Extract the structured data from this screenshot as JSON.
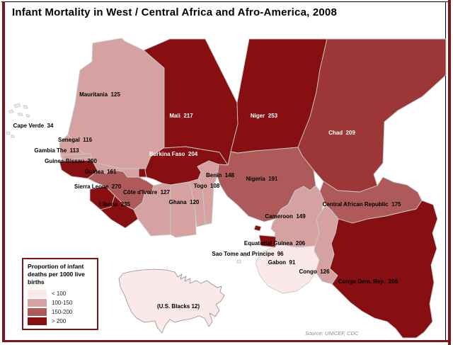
{
  "title": "Infant Mortality in West / Central Africa and Afro-America, 2008",
  "legend": {
    "title": "Proportion of infant deaths per 1000 live births",
    "classes": [
      {
        "label": "< 100",
        "color": "#fbe9e9"
      },
      {
        "label": "100-150",
        "color": "#d5a1a1"
      },
      {
        "label": "150-200",
        "color": "#ae5a5a"
      },
      {
        "label": "> 200",
        "color": "#870e11"
      }
    ]
  },
  "map": {
    "countries": [
      {
        "id": "mauritania",
        "name": "Mauritania",
        "value": 125,
        "category": 1,
        "label_color": "#000000"
      },
      {
        "id": "mali",
        "name": "Mali",
        "value": 217,
        "category": 3,
        "label_color": "#ffffff"
      },
      {
        "id": "niger",
        "name": "Niger",
        "value": 253,
        "category": 3,
        "label_color": "#ffffff"
      },
      {
        "id": "chad",
        "name": "Chad",
        "value": 209,
        "category": 3,
        "label_color": "#ffffff",
        "fill_override": "#9d3636"
      },
      {
        "id": "senegal",
        "name": "Senegal",
        "value": 116,
        "category": 1,
        "label_color": "#000000"
      },
      {
        "id": "gambia",
        "name": "Gambia The",
        "value": 113,
        "category": 1,
        "label_color": "#000000"
      },
      {
        "id": "guinea_bissau",
        "name": "Guinea-Bissau",
        "value": 200,
        "category": 3,
        "label_color": "#000000"
      },
      {
        "id": "guinea",
        "name": "Guinea",
        "value": 161,
        "category": 2,
        "label_color": "#000000"
      },
      {
        "id": "sierra_leone",
        "name": "Sierra Leone",
        "value": 270,
        "category": 3,
        "label_color": "#000000"
      },
      {
        "id": "liberia",
        "name": "Liberia",
        "value": 235,
        "category": 3,
        "label_color": "#000000"
      },
      {
        "id": "cote_divoire",
        "name": "Côte d'Ivoire",
        "value": 127,
        "category": 1,
        "label_color": "#000000"
      },
      {
        "id": "burkina_faso",
        "name": "Burkina Faso",
        "value": 204,
        "category": 3,
        "label_color": "#ffffff"
      },
      {
        "id": "ghana",
        "name": "Ghana",
        "value": 120,
        "category": 1,
        "label_color": "#000000"
      },
      {
        "id": "togo",
        "name": "Togo",
        "value": 108,
        "category": 1,
        "label_color": "#000000"
      },
      {
        "id": "benin",
        "name": "Benin",
        "value": 148,
        "category": 1,
        "label_color": "#000000"
      },
      {
        "id": "nigeria",
        "name": "Nigeria",
        "value": 191,
        "category": 2,
        "label_color": "#000000"
      },
      {
        "id": "cameroon",
        "name": "Cameroon",
        "value": 149,
        "category": 1,
        "label_color": "#000000"
      },
      {
        "id": "central_african_republic",
        "name": "Central African Republic",
        "value": 175,
        "category": 2,
        "label_color": "#000000"
      },
      {
        "id": "congo",
        "name": "Congo",
        "value": 126,
        "category": 1,
        "label_color": "#000000"
      },
      {
        "id": "gabon",
        "name": "Gabon",
        "value": 91,
        "category": 0,
        "label_color": "#000000"
      },
      {
        "id": "equatorial_guinea",
        "name": "Equatorial Guinea",
        "value": 206,
        "category": 3,
        "label_color": "#000000"
      },
      {
        "id": "congo_dem_rep",
        "name": "Congo Dem. Rep.",
        "value": 205,
        "category": 3,
        "label_color": "#000000"
      },
      {
        "id": "cape_verde",
        "name": "Cape Verde",
        "value": 34,
        "category": 0,
        "label_color": "#000000"
      },
      {
        "id": "sao_tome",
        "name": "Sao Tome and Principe",
        "value": 96,
        "category": 0,
        "label_color": "#000000"
      }
    ],
    "inset": {
      "label": "(U.S. Blacks 12)"
    }
  },
  "source": "Source: UNICEF, CDC",
  "frame_color": "#7b161b",
  "border_stroke": "#c9c9c9"
}
